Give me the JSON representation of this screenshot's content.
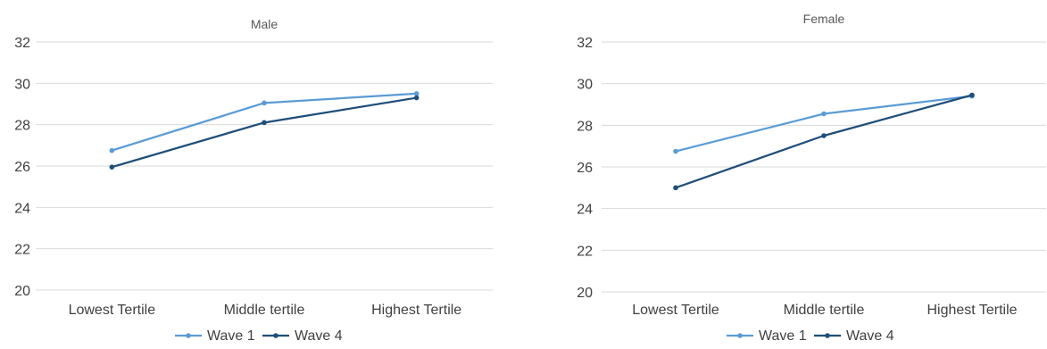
{
  "chart_data": [
    {
      "type": "line",
      "title": "Male",
      "categories": [
        "Lowest Tertile",
        "Middle tertile",
        "Highest Tertile"
      ],
      "ylim": [
        20,
        32
      ],
      "yticks": [
        20,
        22,
        24,
        26,
        28,
        30,
        32
      ],
      "grid": true,
      "legend_position": "bottom",
      "series": [
        {
          "name": "Wave 1",
          "values": [
            26.75,
            29.05,
            29.5
          ],
          "color": "#5b9bd5"
        },
        {
          "name": "Wave 4",
          "values": [
            25.95,
            28.1,
            29.3
          ],
          "color": "#1f4e79"
        }
      ]
    },
    {
      "type": "line",
      "title": "Female",
      "categories": [
        "Lowest Tertile",
        "Middle tertile",
        "Highest Tertile"
      ],
      "ylim": [
        20,
        32
      ],
      "yticks": [
        20,
        22,
        24,
        26,
        28,
        30,
        32
      ],
      "grid": true,
      "legend_position": "bottom",
      "series": [
        {
          "name": "Wave 1",
          "values": [
            26.75,
            28.55,
            29.4
          ],
          "color": "#5b9bd5"
        },
        {
          "name": "Wave 4",
          "values": [
            25.0,
            27.5,
            29.45
          ],
          "color": "#1f4e79"
        }
      ]
    }
  ]
}
